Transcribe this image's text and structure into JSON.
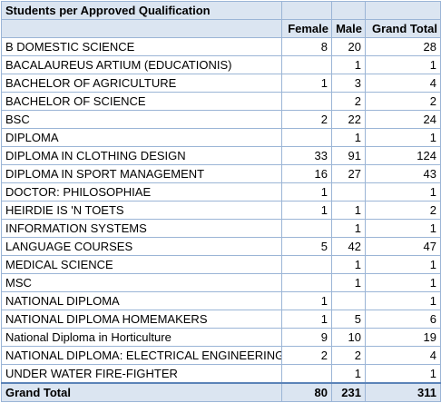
{
  "title": "Students per Approved Qualification",
  "columns": {
    "female": "Female",
    "male": "Male",
    "total": "Grand Total"
  },
  "rows": [
    {
      "label": "B DOMESTIC SCIENCE",
      "female": "8",
      "male": "20",
      "total": "28"
    },
    {
      "label": "BACALAUREUS ARTIUM (EDUCATIONIS)",
      "female": "",
      "male": "1",
      "total": "1"
    },
    {
      "label": "BACHELOR OF AGRICULTURE",
      "female": "1",
      "male": "3",
      "total": "4"
    },
    {
      "label": "BACHELOR OF SCIENCE",
      "female": "",
      "male": "2",
      "total": "2"
    },
    {
      "label": "BSC",
      "female": "2",
      "male": "22",
      "total": "24"
    },
    {
      "label": "DIPLOMA",
      "female": "",
      "male": "1",
      "total": "1"
    },
    {
      "label": "DIPLOMA IN CLOTHING DESIGN",
      "female": "33",
      "male": "91",
      "total": "124"
    },
    {
      "label": "DIPLOMA IN SPORT MANAGEMENT",
      "female": "16",
      "male": "27",
      "total": "43"
    },
    {
      "label": "DOCTOR:  PHILOSOPHIAE",
      "female": "1",
      "male": "",
      "total": "1"
    },
    {
      "label": "HEIRDIE IS 'N TOETS",
      "female": "1",
      "male": "1",
      "total": "2"
    },
    {
      "label": "INFORMATION SYSTEMS",
      "female": "",
      "male": "1",
      "total": "1"
    },
    {
      "label": "LANGUAGE COURSES",
      "female": "5",
      "male": "42",
      "total": "47"
    },
    {
      "label": "MEDICAL SCIENCE",
      "female": "",
      "male": "1",
      "total": "1"
    },
    {
      "label": "MSC",
      "female": "",
      "male": "1",
      "total": "1"
    },
    {
      "label": "NATIONAL DIPLOMA",
      "female": "1",
      "male": "",
      "total": "1"
    },
    {
      "label": "NATIONAL DIPLOMA HOMEMAKERS",
      "female": "1",
      "male": "5",
      "total": "6"
    },
    {
      "label": "National Diploma in Horticulture",
      "female": "9",
      "male": "10",
      "total": "19"
    },
    {
      "label": "NATIONAL DIPLOMA:  ELECTRICAL ENGINEERING",
      "female": "2",
      "male": "2",
      "total": "4"
    },
    {
      "label": "UNDER WATER FIRE-FIGHTER",
      "female": "",
      "male": "1",
      "total": "1"
    }
  ],
  "grand_total": {
    "label": "Grand Total",
    "female": "80",
    "male": "231",
    "total": "311"
  }
}
